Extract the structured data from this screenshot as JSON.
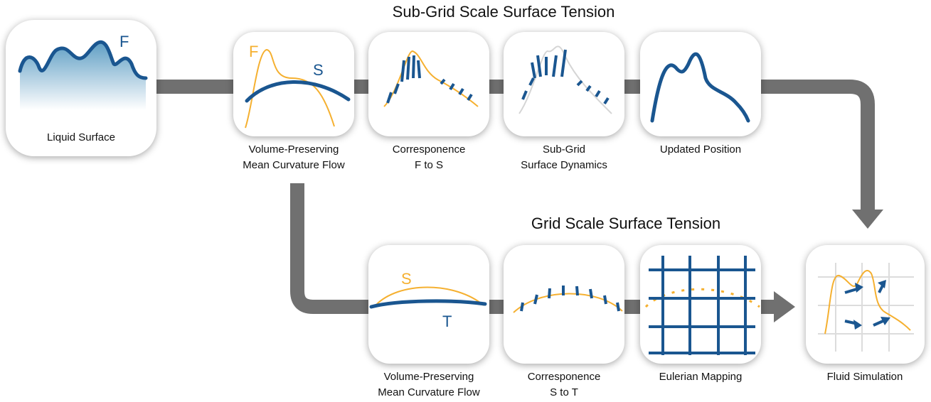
{
  "titles": {
    "sub_grid": "Sub-Grid Scale Surface Tension",
    "grid": "Grid Scale Surface Tension"
  },
  "nodes": [
    {
      "label": [
        "Liquid Surface"
      ],
      "marks": [
        "F"
      ]
    },
    {
      "label": [
        "Volume-Preserving",
        "Mean Curvature Flow"
      ],
      "marks": [
        "F",
        "S"
      ]
    },
    {
      "label": [
        "Corresponence",
        "F to S"
      ]
    },
    {
      "label": [
        "Sub-Grid",
        "Surface Dynamics"
      ]
    },
    {
      "label": [
        "Updated Position"
      ]
    },
    {
      "label": [
        "Volume-Preserving",
        "Mean Curvature Flow"
      ],
      "marks": [
        "S",
        "T"
      ]
    },
    {
      "label": [
        "Corresponence",
        "S to T"
      ]
    },
    {
      "label": [
        "Eulerian Mapping"
      ]
    },
    {
      "label": [
        "Fluid Simulation"
      ]
    }
  ]
}
